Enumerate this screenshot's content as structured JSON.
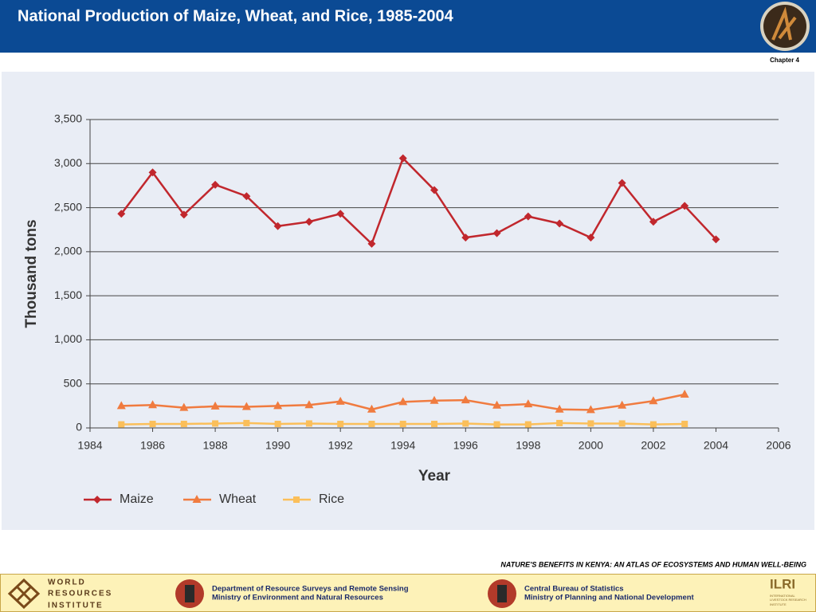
{
  "header": {
    "title": "National Production of Maize, Wheat, and Rice, 1985-2004",
    "chapter": "Chapter 4"
  },
  "chart_data": {
    "type": "line",
    "x_label": "Year",
    "y_label": "Thousand tons",
    "x": [
      1985,
      1986,
      1987,
      1988,
      1989,
      1990,
      1991,
      1992,
      1993,
      1994,
      1995,
      1996,
      1997,
      1998,
      1999,
      2000,
      2001,
      2002,
      2003,
      2004
    ],
    "series": [
      {
        "name": "Maize",
        "color": "#c1272d",
        "marker": "diamond",
        "values": [
          2430,
          2900,
          2420,
          2760,
          2630,
          2290,
          2340,
          2430,
          2090,
          3060,
          2700,
          2160,
          2210,
          2400,
          2320,
          2160,
          2780,
          2340,
          2520,
          2140
        ]
      },
      {
        "name": "Wheat",
        "color": "#f07b3f",
        "marker": "triangle",
        "values": [
          250,
          260,
          230,
          245,
          240,
          250,
          260,
          300,
          210,
          295,
          310,
          315,
          255,
          270,
          210,
          205,
          255,
          305,
          380,
          null
        ]
      },
      {
        "name": "Rice",
        "color": "#fbbf5a",
        "marker": "square",
        "values": [
          40,
          45,
          45,
          50,
          55,
          45,
          50,
          45,
          45,
          45,
          45,
          50,
          40,
          40,
          55,
          50,
          50,
          40,
          45,
          null
        ]
      }
    ],
    "xlim": [
      1984,
      2006
    ],
    "xticks": [
      1984,
      1986,
      1988,
      1990,
      1992,
      1994,
      1996,
      1998,
      2000,
      2002,
      2004,
      2006
    ],
    "ylim": [
      0,
      3500
    ],
    "yticks": [
      0,
      500,
      {
        "value": 1000,
        "label": "1,000"
      },
      {
        "value": 1500,
        "label": "1,500"
      },
      {
        "value": 2000,
        "label": "2,000"
      },
      {
        "value": 2500,
        "label": "2,500"
      },
      {
        "value": 3000,
        "label": "3,000"
      },
      {
        "value": 3500,
        "label": "3,500"
      }
    ],
    "grid": true,
    "legend": "bottom"
  },
  "footer": {
    "atlas": "NATURE'S BENEFITS IN KENYA: AN ATLAS OF ECOSYSTEMS AND HUMAN WELL-BEING",
    "wri": [
      "WORLD",
      "RESOURCES",
      "INSTITUTE"
    ],
    "drsrs": [
      "Department of Resource Surveys and Remote Sensing",
      "Ministry of Environment and Natural Resources"
    ],
    "cbs": [
      "Central Bureau of Statistics",
      "Ministry of Planning and National Development"
    ],
    "ilri": "ILRI",
    "ilri_sub": [
      "INTERNATIONAL",
      "LIVESTOCK RESEARCH",
      "INSTITUTE"
    ]
  }
}
